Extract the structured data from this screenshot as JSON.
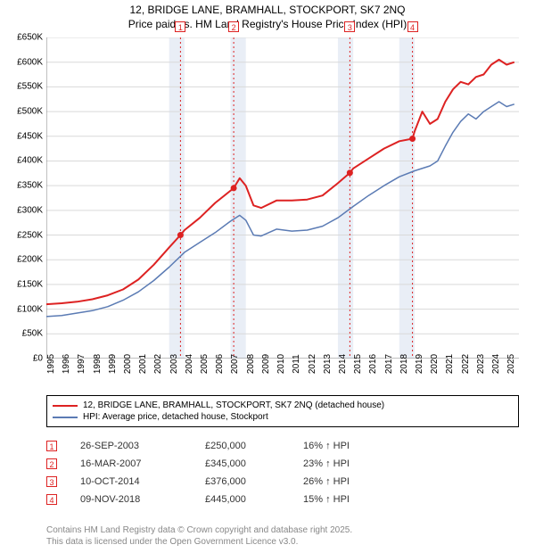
{
  "title_line1": "12, BRIDGE LANE, BRAMHALL, STOCKPORT, SK7 2NQ",
  "title_line2": "Price paid vs. HM Land Registry's House Price Index (HPI)",
  "chart": {
    "type": "line",
    "background_color": "#ffffff",
    "grid_color": "#d9d9d9",
    "axis_color": "#808080",
    "band_color": "#e9eef6",
    "marker_line_color": "#dd2222",
    "x_min": 1995,
    "x_max": 2025.8,
    "y_min": 0,
    "y_max": 650000,
    "ytick_step": 50000,
    "y_ticks": [
      "£0",
      "£50K",
      "£100K",
      "£150K",
      "£200K",
      "£250K",
      "£300K",
      "£350K",
      "£400K",
      "£450K",
      "£500K",
      "£550K",
      "£600K",
      "£650K"
    ],
    "x_ticks": [
      1995,
      1996,
      1997,
      1998,
      1999,
      2000,
      2001,
      2002,
      2003,
      2004,
      2005,
      2006,
      2007,
      2008,
      2009,
      2010,
      2011,
      2012,
      2013,
      2014,
      2015,
      2016,
      2017,
      2018,
      2019,
      2020,
      2021,
      2022,
      2023,
      2024,
      2025
    ],
    "series": [
      {
        "name": "price",
        "color": "#dd2222",
        "width": 2,
        "points": [
          [
            1995,
            110000
          ],
          [
            1996,
            112000
          ],
          [
            1997,
            115000
          ],
          [
            1998,
            120000
          ],
          [
            1999,
            128000
          ],
          [
            2000,
            140000
          ],
          [
            2001,
            160000
          ],
          [
            2002,
            190000
          ],
          [
            2003,
            225000
          ],
          [
            2003.74,
            250000
          ],
          [
            2004,
            260000
          ],
          [
            2005,
            285000
          ],
          [
            2006,
            315000
          ],
          [
            2006.8,
            335000
          ],
          [
            2007.21,
            345000
          ],
          [
            2007.6,
            365000
          ],
          [
            2008,
            350000
          ],
          [
            2008.5,
            310000
          ],
          [
            2009,
            305000
          ],
          [
            2010,
            320000
          ],
          [
            2011,
            320000
          ],
          [
            2012,
            322000
          ],
          [
            2013,
            330000
          ],
          [
            2014,
            355000
          ],
          [
            2014.78,
            376000
          ],
          [
            2015,
            385000
          ],
          [
            2016,
            405000
          ],
          [
            2017,
            425000
          ],
          [
            2018,
            440000
          ],
          [
            2018.86,
            445000
          ],
          [
            2019,
            460000
          ],
          [
            2019.5,
            500000
          ],
          [
            2020,
            475000
          ],
          [
            2020.5,
            485000
          ],
          [
            2021,
            520000
          ],
          [
            2021.5,
            545000
          ],
          [
            2022,
            560000
          ],
          [
            2022.5,
            555000
          ],
          [
            2023,
            570000
          ],
          [
            2023.5,
            575000
          ],
          [
            2024,
            595000
          ],
          [
            2024.5,
            605000
          ],
          [
            2025,
            595000
          ],
          [
            2025.5,
            600000
          ]
        ]
      },
      {
        "name": "hpi",
        "color": "#5b7bb4",
        "width": 1.5,
        "points": [
          [
            1995,
            85000
          ],
          [
            1996,
            87000
          ],
          [
            1997,
            92000
          ],
          [
            1998,
            97000
          ],
          [
            1999,
            105000
          ],
          [
            2000,
            118000
          ],
          [
            2001,
            135000
          ],
          [
            2002,
            158000
          ],
          [
            2003,
            185000
          ],
          [
            2004,
            215000
          ],
          [
            2005,
            235000
          ],
          [
            2006,
            255000
          ],
          [
            2007,
            278000
          ],
          [
            2007.6,
            290000
          ],
          [
            2008,
            280000
          ],
          [
            2008.5,
            250000
          ],
          [
            2009,
            248000
          ],
          [
            2010,
            262000
          ],
          [
            2011,
            258000
          ],
          [
            2012,
            260000
          ],
          [
            2013,
            268000
          ],
          [
            2014,
            285000
          ],
          [
            2015,
            308000
          ],
          [
            2016,
            330000
          ],
          [
            2017,
            350000
          ],
          [
            2018,
            368000
          ],
          [
            2019,
            380000
          ],
          [
            2020,
            390000
          ],
          [
            2020.5,
            400000
          ],
          [
            2021,
            430000
          ],
          [
            2021.5,
            458000
          ],
          [
            2022,
            480000
          ],
          [
            2022.5,
            495000
          ],
          [
            2023,
            485000
          ],
          [
            2023.5,
            500000
          ],
          [
            2024,
            510000
          ],
          [
            2024.5,
            520000
          ],
          [
            2025,
            510000
          ],
          [
            2025.5,
            515000
          ]
        ]
      }
    ],
    "sale_markers": [
      {
        "n": "1",
        "year": 2003.74,
        "price": 250000
      },
      {
        "n": "2",
        "year": 2007.21,
        "price": 345000
      },
      {
        "n": "3",
        "year": 2014.78,
        "price": 376000
      },
      {
        "n": "4",
        "year": 2018.86,
        "price": 445000
      }
    ]
  },
  "legend": {
    "items": [
      {
        "color": "#dd2222",
        "label": "12, BRIDGE LANE, BRAMHALL, STOCKPORT, SK7 2NQ (detached house)"
      },
      {
        "color": "#5b7bb4",
        "label": "HPI: Average price, detached house, Stockport"
      }
    ]
  },
  "sales": [
    {
      "n": "1",
      "date": "26-SEP-2003",
      "price": "£250,000",
      "diff": "16% ↑ HPI"
    },
    {
      "n": "2",
      "date": "16-MAR-2007",
      "price": "£345,000",
      "diff": "23% ↑ HPI"
    },
    {
      "n": "3",
      "date": "10-OCT-2014",
      "price": "£376,000",
      "diff": "26% ↑ HPI"
    },
    {
      "n": "4",
      "date": "09-NOV-2018",
      "price": "£445,000",
      "diff": "15% ↑ HPI"
    }
  ],
  "footer_line1": "Contains HM Land Registry data © Crown copyright and database right 2025.",
  "footer_line2": "This data is licensed under the Open Government Licence v3.0."
}
